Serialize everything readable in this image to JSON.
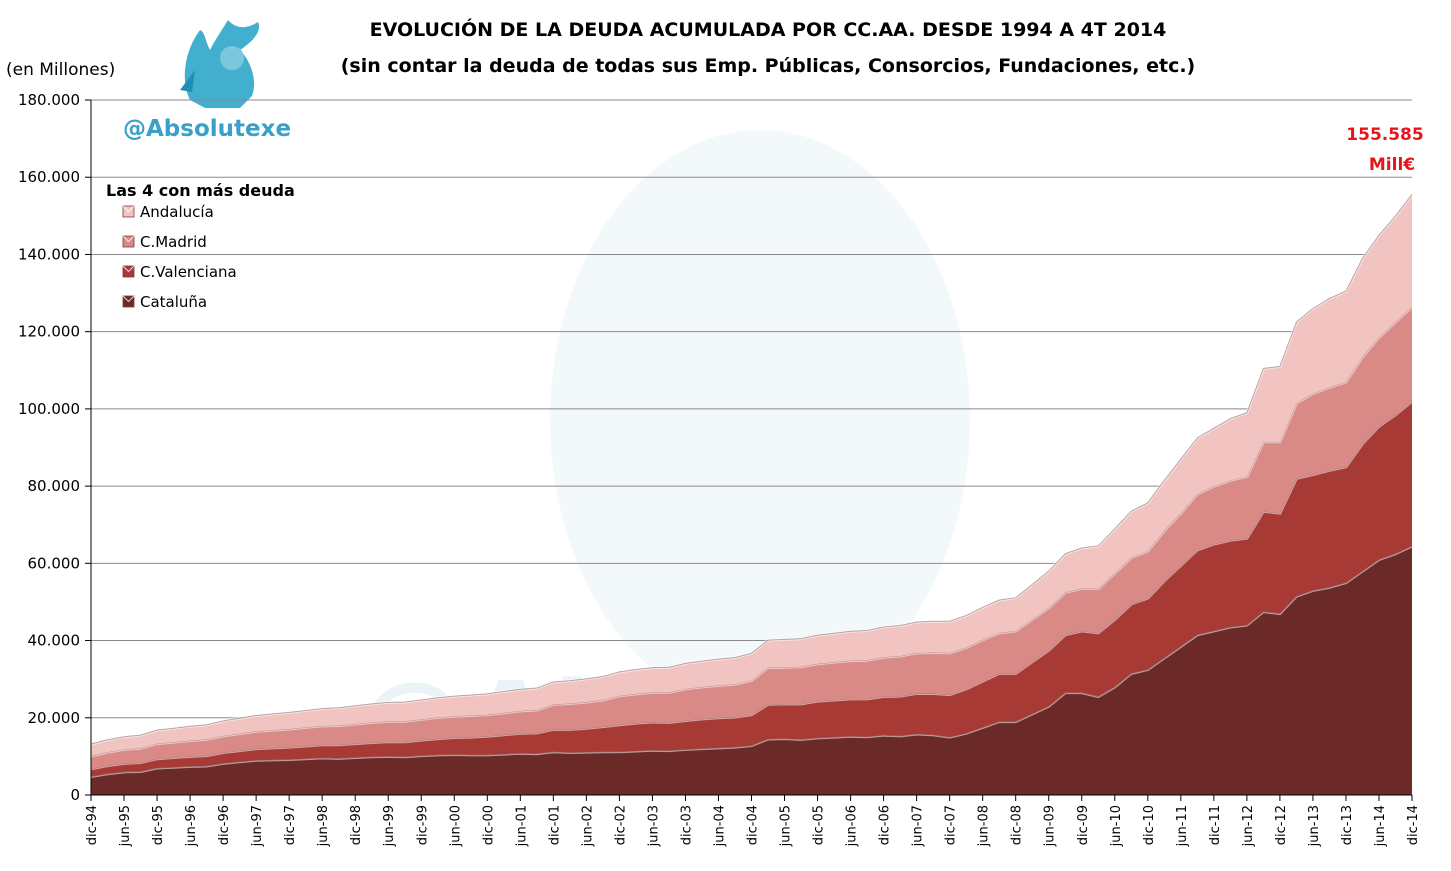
{
  "header": {
    "title_line1": "EVOLUCIÓN DE LA DEUDA ACUMULADA POR CC.AA. DESDE 1994 A 4T 2014",
    "title_line2": "(sin contar la deuda de todas sus Emp. Públicas, Consorcios, Fundaciones, etc.)",
    "units": "(en Millones)",
    "handle": "@Absolutexe",
    "watermark": "@Absolutexe"
  },
  "annotation": {
    "value": "155.585",
    "unit": "Mill€",
    "color": "#e8141b"
  },
  "chart_data": {
    "type": "area",
    "stacked": true,
    "title": "EVOLUCIÓN DE LA DEUDA ACUMULADA POR CC.AA. DESDE 1994 A 4T 2014",
    "subtitle": "(sin contar la deuda de todas sus Emp. Públicas, Consorcios, Fundaciones, etc.)",
    "ylabel": "(en Millones)",
    "xlabel": "",
    "ylim": [
      0,
      180000
    ],
    "yticks": [
      "0",
      "20.000",
      "40.000",
      "60.000",
      "80.000",
      "100.000",
      "120.000",
      "140.000",
      "160.000",
      "180.000"
    ],
    "grid": "horizontal",
    "legend": {
      "title": "Las 4 con más deuda",
      "position": "top-left"
    },
    "categories": [
      "dic-94",
      "mar-95",
      "jun-95",
      "sep-95",
      "dic-95",
      "mar-96",
      "jun-96",
      "sep-96",
      "dic-96",
      "mar-97",
      "jun-97",
      "sep-97",
      "dic-97",
      "mar-98",
      "jun-98",
      "sep-98",
      "dic-98",
      "mar-99",
      "jun-99",
      "sep-99",
      "dic-99",
      "mar-00",
      "jun-00",
      "sep-00",
      "dic-00",
      "mar-01",
      "jun-01",
      "sep-01",
      "dic-01",
      "mar-02",
      "jun-02",
      "sep-02",
      "dic-02",
      "mar-03",
      "jun-03",
      "sep-03",
      "dic-03",
      "mar-04",
      "jun-04",
      "sep-04",
      "dic-04",
      "mar-05",
      "jun-05",
      "sep-05",
      "dic-05",
      "mar-06",
      "jun-06",
      "sep-06",
      "dic-06",
      "mar-07",
      "jun-07",
      "sep-07",
      "dic-07",
      "mar-08",
      "jun-08",
      "sep-08",
      "dic-08",
      "mar-09",
      "jun-09",
      "sep-09",
      "dic-09",
      "mar-10",
      "jun-10",
      "sep-10",
      "dic-10",
      "mar-11",
      "jun-11",
      "sep-11",
      "dic-11",
      "mar-12",
      "jun-12",
      "sep-12",
      "dic-12",
      "mar-13",
      "jun-13",
      "sep-13",
      "dic-13",
      "mar-14",
      "jun-14",
      "sep-14",
      "dic-14"
    ],
    "tick_every": 2,
    "series": [
      {
        "name": "Cataluña",
        "color": "#6b2a28",
        "values": [
          4800,
          5500,
          6000,
          6100,
          7000,
          7200,
          7400,
          7500,
          8200,
          8600,
          9000,
          9100,
          9200,
          9400,
          9600,
          9500,
          9700,
          9900,
          10000,
          9900,
          10200,
          10400,
          10500,
          10400,
          10400,
          10600,
          10800,
          10700,
          11200,
          11000,
          11100,
          11200,
          11200,
          11400,
          11600,
          11500,
          11800,
          12000,
          12200,
          12400,
          12800,
          14500,
          14600,
          14400,
          14800,
          15000,
          15200,
          15100,
          15500,
          15300,
          15800,
          15600,
          15000,
          16000,
          17500,
          19000,
          19000,
          21000,
          23000,
          26500,
          26500,
          25500,
          28000,
          31500,
          32500,
          35500,
          38500,
          41500,
          42500,
          43500,
          44000,
          47500,
          47000,
          51500,
          53000,
          53800,
          55000,
          58000,
          61000,
          62500,
          64500
        ]
      },
      {
        "name": "C.Valenciana",
        "color": "#a83a36",
        "values": [
          2000,
          2100,
          2200,
          2300,
          2400,
          2500,
          2600,
          2700,
          2800,
          2900,
          3000,
          3100,
          3200,
          3300,
          3400,
          3500,
          3600,
          3700,
          3800,
          3900,
          4000,
          4200,
          4400,
          4600,
          4800,
          5000,
          5200,
          5400,
          5800,
          6000,
          6200,
          6500,
          7000,
          7200,
          7300,
          7300,
          7500,
          7700,
          7800,
          7800,
          8000,
          9000,
          9000,
          9200,
          9500,
          9600,
          9700,
          9800,
          10000,
          10300,
          10500,
          10700,
          11000,
          11500,
          12000,
          12500,
          12500,
          13500,
          14500,
          15000,
          16000,
          16500,
          17500,
          18000,
          18500,
          20000,
          21000,
          22000,
          22500,
          22500,
          22500,
          26000,
          26000,
          30500,
          30000,
          30300,
          30000,
          33000,
          34500,
          36000,
          37500
        ]
      },
      {
        "name": "C.Madrid",
        "color": "#d98a86",
        "values": [
          3300,
          3500,
          3600,
          3700,
          3900,
          4000,
          4100,
          4200,
          4300,
          4400,
          4500,
          4600,
          4700,
          4800,
          4900,
          5000,
          5100,
          5200,
          5300,
          5300,
          5400,
          5500,
          5500,
          5600,
          5600,
          5700,
          5800,
          5900,
          6500,
          6700,
          6800,
          6900,
          7500,
          7600,
          7700,
          7800,
          8200,
          8300,
          8400,
          8500,
          8900,
          9500,
          9500,
          9600,
          9700,
          9800,
          9900,
          10000,
          10200,
          10400,
          10500,
          10600,
          10800,
          10700,
          10700,
          10500,
          11000,
          11000,
          11000,
          11000,
          11000,
          11500,
          12000,
          12000,
          12200,
          13000,
          13500,
          14500,
          15000,
          15500,
          16000,
          18000,
          18500,
          19500,
          21000,
          21500,
          22000,
          22500,
          23000,
          24000,
          24500
        ]
      },
      {
        "name": "Andalucía",
        "color": "#f1c4c1",
        "values": [
          3100,
          3200,
          3300,
          3400,
          3500,
          3600,
          3700,
          3800,
          3900,
          4000,
          4100,
          4200,
          4300,
          4400,
          4500,
          4600,
          4700,
          4800,
          4900,
          5000,
          5000,
          5100,
          5200,
          5300,
          5400,
          5500,
          5600,
          5700,
          5800,
          5900,
          6000,
          6100,
          6200,
          6300,
          6400,
          6500,
          6600,
          6700,
          6800,
          6900,
          7000,
          7100,
          7200,
          7300,
          7400,
          7500,
          7600,
          7700,
          7800,
          7900,
          8000,
          8100,
          8200,
          8300,
          8400,
          8500,
          8600,
          9000,
          9500,
          10000,
          10500,
          11000,
          11500,
          12000,
          12500,
          13000,
          14000,
          14500,
          15000,
          16000,
          16500,
          19000,
          19500,
          21000,
          22000,
          23000,
          23500,
          25500,
          26500,
          27500,
          29085
        ]
      }
    ],
    "annotation": {
      "text_line1": "155.585",
      "text_line2": "Mill€",
      "at_category": "dic-14",
      "value": 155585
    }
  }
}
